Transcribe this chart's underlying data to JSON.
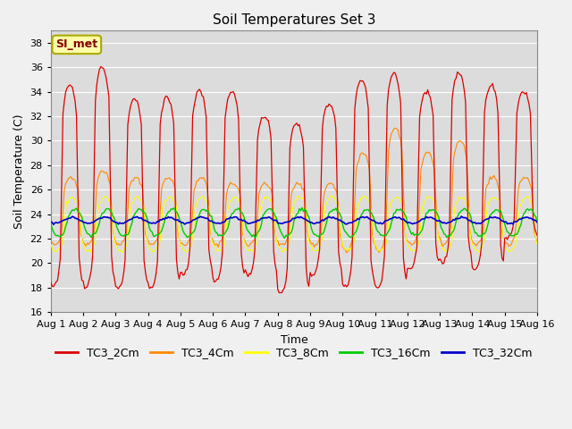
{
  "title": "Soil Temperatures Set 3",
  "xlabel": "Time",
  "ylabel": "Soil Temperature (C)",
  "ylim": [
    16,
    39
  ],
  "yticks": [
    16,
    18,
    20,
    22,
    24,
    26,
    28,
    30,
    32,
    34,
    36,
    38
  ],
  "n_days": 15,
  "series_colors": {
    "TC3_2Cm": "#dd0000",
    "TC3_4Cm": "#ff8800",
    "TC3_8Cm": "#ffff00",
    "TC3_16Cm": "#00cc00",
    "TC3_32Cm": "#0000cc"
  },
  "legend_label": "SI_met",
  "plot_bg_color": "#dcdcdc",
  "fig_bg_color": "#f0f0f0",
  "grid_color": "#ffffff",
  "title_fontsize": 11,
  "axis_fontsize": 9,
  "tick_fontsize": 8,
  "legend_fontsize": 9
}
